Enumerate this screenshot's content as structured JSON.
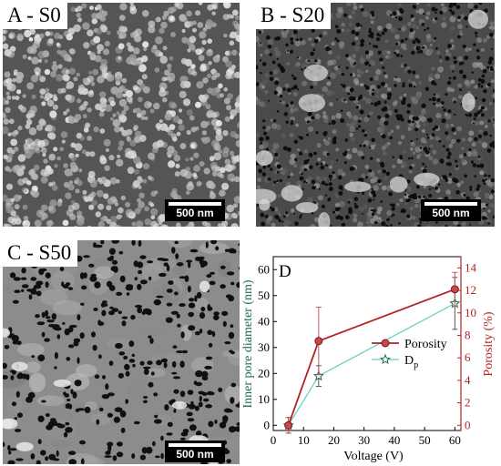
{
  "panels": {
    "a": {
      "label": "A - S0",
      "scale_bar": "500 nm"
    },
    "b": {
      "label": "B - S20",
      "scale_bar": "500 nm"
    },
    "c": {
      "label": "C - S50",
      "scale_bar": "500 nm"
    }
  },
  "chart_data": {
    "type": "line",
    "panel_label": "D",
    "xlabel": "Voltage (V)",
    "ylabel": "Inner pore diameter (nm)",
    "ylabel_right": "Porosity (%)",
    "x": [
      5,
      15,
      60
    ],
    "xlim": [
      0,
      62
    ],
    "ylim": [
      -2,
      65
    ],
    "ylim_right": [
      -0.46,
      15
    ],
    "x_ticks": [
      0,
      10,
      20,
      30,
      40,
      50,
      60
    ],
    "y_ticks": [
      0,
      10,
      20,
      30,
      40,
      50,
      60
    ],
    "y_ticks_right": [
      0,
      2,
      4,
      6,
      8,
      10,
      12,
      14
    ],
    "legend_position": "center-right",
    "series": [
      {
        "name": "Porosity",
        "axis": "right",
        "color": "#b22222",
        "marker": "circle",
        "values": [
          0,
          7.5,
          12.1
        ],
        "errors": [
          0.7,
          3,
          1.5
        ]
      },
      {
        "name": "D",
        "name_subscript": "p",
        "axis": "left",
        "color": "#6fcfc4",
        "marker": "star",
        "values": [
          0,
          19,
          47
        ],
        "errors": [
          3,
          4,
          10
        ]
      }
    ],
    "colors": {
      "left_axis": "#1d6b52",
      "right_axis": "#b22222"
    }
  }
}
